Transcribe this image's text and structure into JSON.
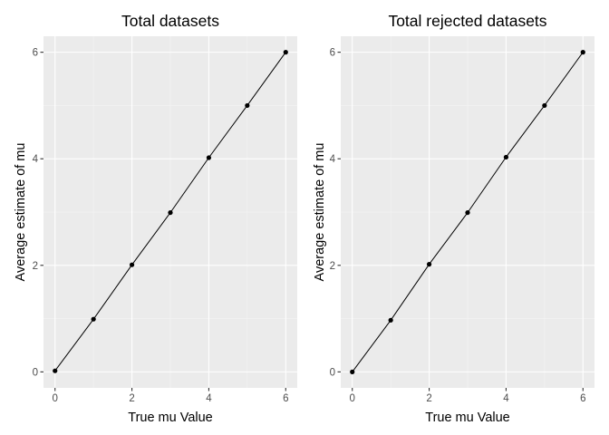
{
  "chart_data": [
    {
      "type": "line",
      "title": "Total datasets",
      "xlabel": "True mu Value",
      "ylabel": "Average estimate of mu",
      "x": [
        0,
        1,
        2,
        3,
        4,
        5,
        6
      ],
      "y": [
        0.02,
        0.99,
        2.01,
        2.99,
        4.02,
        5.0,
        6.0
      ],
      "xlim": [
        -0.3,
        6.3
      ],
      "ylim": [
        -0.3,
        6.3
      ],
      "xticks": [
        "0",
        "2",
        "4",
        "6"
      ],
      "yticks": [
        "0",
        "2",
        "4",
        "6"
      ],
      "grid": true,
      "markers": true,
      "colors": {
        "panel": "#ebebeb",
        "line": "#000000"
      }
    },
    {
      "type": "line",
      "title": "Total rejected datasets",
      "xlabel": "True mu Value",
      "ylabel": "Average estimate of mu",
      "x": [
        0,
        1,
        2,
        3,
        4,
        5,
        6
      ],
      "y": [
        0.0,
        0.97,
        2.02,
        2.99,
        4.03,
        5.0,
        6.0
      ],
      "xlim": [
        -0.3,
        6.3
      ],
      "ylim": [
        -0.3,
        6.3
      ],
      "xticks": [
        "0",
        "2",
        "4",
        "6"
      ],
      "yticks": [
        "0",
        "2",
        "4",
        "6"
      ],
      "grid": true,
      "markers": true,
      "colors": {
        "panel": "#ebebeb",
        "line": "#000000"
      }
    }
  ]
}
